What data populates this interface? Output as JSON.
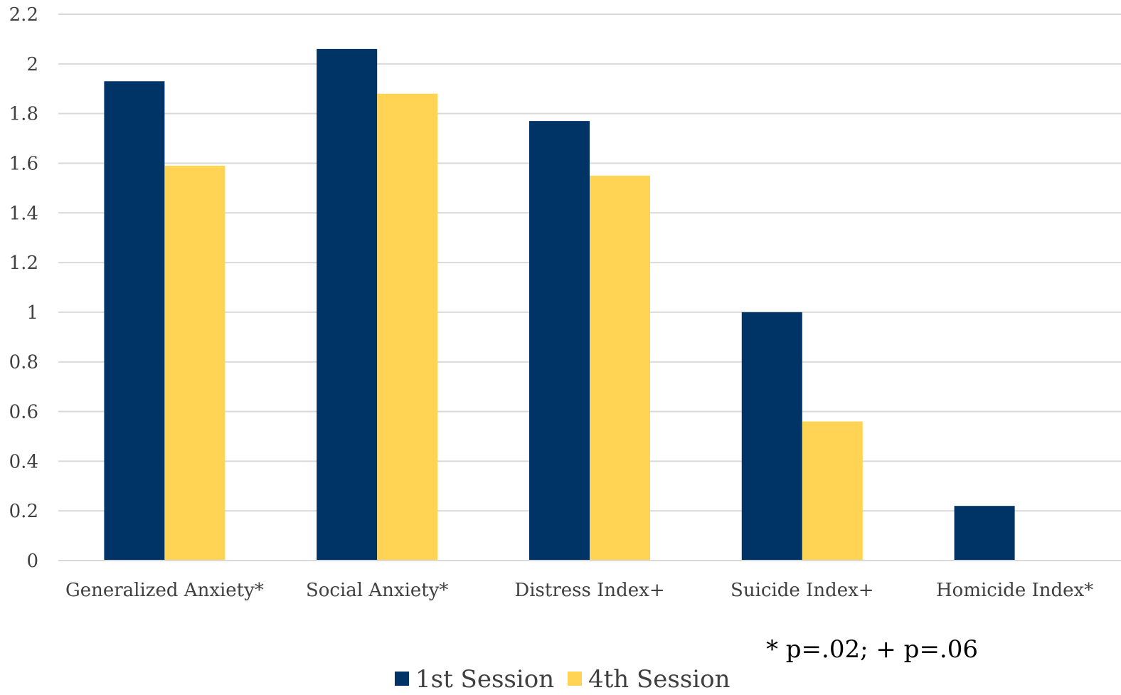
{
  "chart_data": {
    "type": "bar",
    "categories": [
      "Generalized Anxiety*",
      "Social Anxiety*",
      "Distress Index+",
      "Suicide Index+",
      "Homicide Index*"
    ],
    "series": [
      {
        "name": "1st Session",
        "color": "#003366",
        "values": [
          1.93,
          2.06,
          1.77,
          1.0,
          0.22
        ]
      },
      {
        "name": "4th Session",
        "color": "#FFD455",
        "values": [
          1.59,
          1.88,
          1.55,
          0.56,
          0
        ]
      }
    ],
    "ylim": [
      0,
      2.2
    ],
    "yticks": [
      "0",
      "0.2",
      "0.4",
      "0.6",
      "0.8",
      "1",
      "1.2",
      "1.4",
      "1.6",
      "1.8",
      "2",
      "2.2"
    ],
    "ytick_values": [
      0,
      0.2,
      0.4,
      0.6,
      0.8,
      1.0,
      1.2,
      1.4,
      1.6,
      1.8,
      2.0,
      2.2
    ],
    "grid": true,
    "legend_position": "bottom-center",
    "annotation": "* p=.02; + p=.06"
  }
}
